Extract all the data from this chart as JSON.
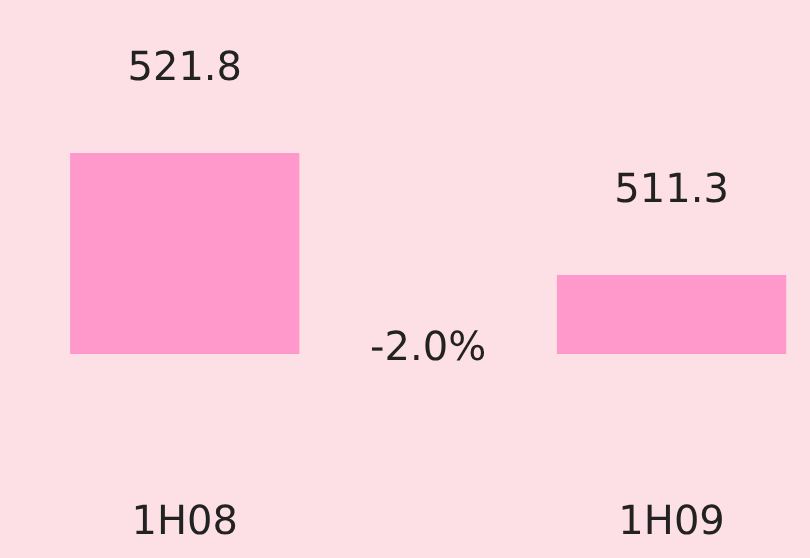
{
  "chart_data": {
    "type": "bar",
    "categories": [
      "1H08",
      "1H09"
    ],
    "values": [
      521.8,
      511.3
    ],
    "color": "#ff99cc",
    "data_labels": true,
    "annotations": [
      "-2.0%"
    ]
  }
}
